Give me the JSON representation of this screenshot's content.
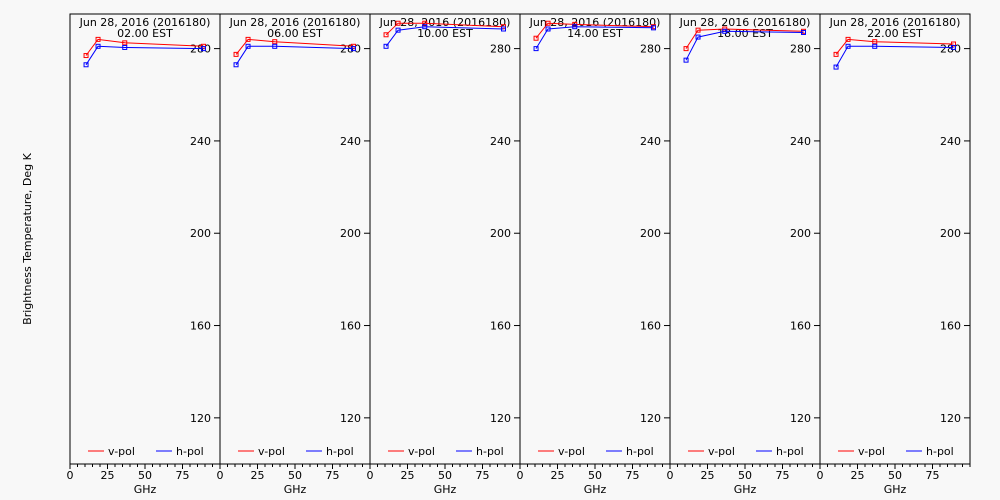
{
  "figure": {
    "ylabel": "Brightness Temperature, Deg K",
    "colors": {
      "v_pol": "#ff0000",
      "h_pol": "#0000ff"
    }
  },
  "chart_data": [
    {
      "type": "line",
      "title_line1": "Jun 28, 2016 (2016180)",
      "title_line2": "02.00 EST",
      "xlabel": "GHz",
      "xlim": [
        0,
        100
      ],
      "ylim": [
        100,
        295
      ],
      "x_ticks": [
        0,
        25,
        50,
        75
      ],
      "y_ticks": [
        120,
        160,
        200,
        240,
        280
      ],
      "legend": "bottom",
      "series": [
        {
          "name": "v-pol",
          "color": "#ff0000",
          "x": [
            10.7,
            18.7,
            36.5,
            89.0
          ],
          "y": [
            277,
            284,
            282.5,
            281
          ]
        },
        {
          "name": "h-pol",
          "color": "#0000ff",
          "x": [
            10.7,
            18.7,
            36.5,
            89.0
          ],
          "y": [
            273,
            281,
            280.5,
            280
          ]
        }
      ]
    },
    {
      "type": "line",
      "title_line1": "Jun 28, 2016 (2016180)",
      "title_line2": "06.00 EST",
      "xlabel": "GHz",
      "xlim": [
        0,
        100
      ],
      "ylim": [
        100,
        295
      ],
      "x_ticks": [
        0,
        25,
        50,
        75
      ],
      "y_ticks": [
        120,
        160,
        200,
        240,
        280
      ],
      "legend": "bottom",
      "series": [
        {
          "name": "v-pol",
          "color": "#ff0000",
          "x": [
            10.7,
            18.7,
            36.5,
            89.0
          ],
          "y": [
            277.5,
            284,
            283,
            281
          ]
        },
        {
          "name": "h-pol",
          "color": "#0000ff",
          "x": [
            10.7,
            18.7,
            36.5,
            89.0
          ],
          "y": [
            273,
            281,
            281,
            280
          ]
        }
      ]
    },
    {
      "type": "line",
      "title_line1": "Jun 28, 2016 (2016180)",
      "title_line2": "10.00 EST",
      "xlabel": "GHz",
      "xlim": [
        0,
        100
      ],
      "ylim": [
        100,
        295
      ],
      "x_ticks": [
        0,
        25,
        50,
        75
      ],
      "y_ticks": [
        120,
        160,
        200,
        240,
        280
      ],
      "legend": "bottom",
      "series": [
        {
          "name": "v-pol",
          "color": "#ff0000",
          "x": [
            10.7,
            18.7,
            36.5,
            89.0
          ],
          "y": [
            286,
            291,
            291,
            289.5
          ]
        },
        {
          "name": "h-pol",
          "color": "#0000ff",
          "x": [
            10.7,
            18.7,
            36.5,
            89.0
          ],
          "y": [
            281,
            288,
            289.5,
            288.5
          ]
        }
      ]
    },
    {
      "type": "line",
      "title_line1": "Jun 28, 2016 (2016180)",
      "title_line2": "14.00 EST",
      "xlabel": "GHz",
      "xlim": [
        0,
        100
      ],
      "ylim": [
        100,
        295
      ],
      "x_ticks": [
        0,
        25,
        50,
        75
      ],
      "y_ticks": [
        120,
        160,
        200,
        240,
        280
      ],
      "legend": "bottom",
      "series": [
        {
          "name": "v-pol",
          "color": "#ff0000",
          "x": [
            10.7,
            18.7,
            36.5,
            89.0
          ],
          "y": [
            284.5,
            291,
            290.5,
            289.5
          ]
        },
        {
          "name": "h-pol",
          "color": "#0000ff",
          "x": [
            10.7,
            18.7,
            36.5,
            89.0
          ],
          "y": [
            280,
            288.5,
            289.5,
            289
          ]
        }
      ]
    },
    {
      "type": "line",
      "title_line1": "Jun 28, 2016 (2016180)",
      "title_line2": "18.00 EST",
      "xlabel": "GHz",
      "xlim": [
        0,
        100
      ],
      "ylim": [
        100,
        295
      ],
      "x_ticks": [
        0,
        25,
        50,
        75
      ],
      "y_ticks": [
        120,
        160,
        200,
        240,
        280
      ],
      "legend": "bottom",
      "series": [
        {
          "name": "v-pol",
          "color": "#ff0000",
          "x": [
            10.7,
            18.7,
            36.5,
            89.0
          ],
          "y": [
            280,
            288,
            288.5,
            287.5
          ]
        },
        {
          "name": "h-pol",
          "color": "#0000ff",
          "x": [
            10.7,
            18.7,
            36.5,
            89.0
          ],
          "y": [
            275,
            285,
            287.5,
            287
          ]
        }
      ]
    },
    {
      "type": "line",
      "title_line1": "Jun 28, 2016 (2016180)",
      "title_line2": "22.00 EST",
      "xlabel": "GHz",
      "xlim": [
        0,
        100
      ],
      "ylim": [
        100,
        295
      ],
      "x_ticks": [
        0,
        25,
        50,
        75
      ],
      "y_ticks": [
        120,
        160,
        200,
        240,
        280
      ],
      "legend": "bottom",
      "series": [
        {
          "name": "v-pol",
          "color": "#ff0000",
          "x": [
            10.7,
            18.7,
            36.5,
            89.0
          ],
          "y": [
            277.5,
            284,
            283,
            282
          ]
        },
        {
          "name": "h-pol",
          "color": "#0000ff",
          "x": [
            10.7,
            18.7,
            36.5,
            89.0
          ],
          "y": [
            272,
            281,
            281,
            280.5
          ]
        }
      ]
    }
  ]
}
